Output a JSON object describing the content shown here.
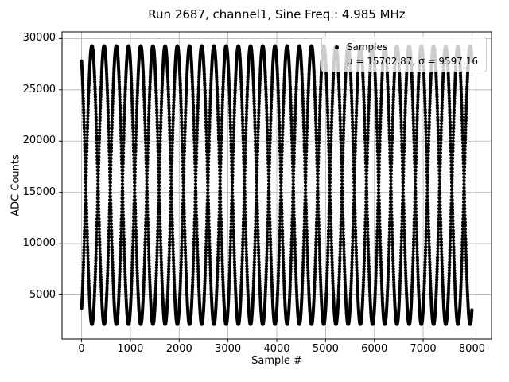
{
  "figure": {
    "background": "#ffffff",
    "axes_edge_color": "#000000",
    "grid_color": "#b0b0b0"
  },
  "chart_data": {
    "type": "scatter",
    "title": "Run 2687, channel1, Sine Freq.: 4.985 MHz",
    "xlabel": "Sample #",
    "ylabel": "ADC Counts",
    "xlim": [
      -400,
      8400
    ],
    "ylim": [
      700,
      30650
    ],
    "x_ticks": [
      0,
      1000,
      2000,
      3000,
      4000,
      5000,
      6000,
      7000,
      8000
    ],
    "y_ticks": [
      5000,
      10000,
      15000,
      20000,
      25000,
      30000
    ],
    "grid": true,
    "legend": {
      "position": "upper-right",
      "entries": [
        {
          "label": "Samples",
          "marker": "dot"
        },
        {
          "label": "μ = 15702.87, σ = 9597.16",
          "marker": "none"
        }
      ]
    },
    "series": [
      {
        "name": "Samples",
        "marker": "point",
        "color": "#000000",
        "x_start": 0,
        "x_end": 8000,
        "n_samples": 8001,
        "mean": 15702.87,
        "std": 9597.16,
        "amplitude": 13572.5,
        "apparent_freq_cycles_per_sample": 0.498,
        "phase_rad": 1.1,
        "marker_radius_px": 2.1,
        "sine_freq_label": "4.985 MHz"
      }
    ]
  }
}
